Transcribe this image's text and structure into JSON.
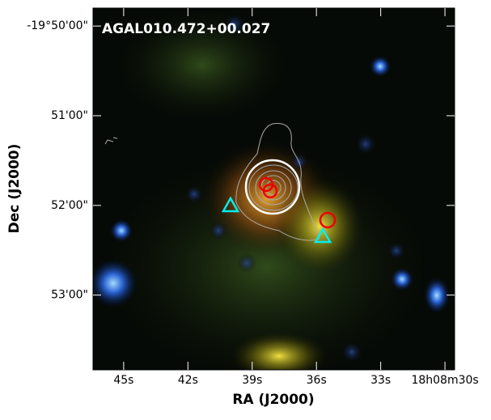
{
  "chart_data": {
    "type": "image",
    "annotation": "AGAL010.472+00.027",
    "xlabel": "RA (J2000)",
    "ylabel": "Dec (J2000)",
    "xlim": [
      46.43,
      29.55
    ],
    "xticks": [
      {
        "value": 45,
        "label": "45s"
      },
      {
        "value": 42,
        "label": "42s"
      },
      {
        "value": 39,
        "label": "39s"
      },
      {
        "value": 36,
        "label": "36s"
      },
      {
        "value": 33,
        "label": "33s"
      },
      {
        "value": 30,
        "label": "18h08m30s"
      }
    ],
    "ylim": [
      3230,
      2988
    ],
    "yticks": [
      {
        "value": 3000,
        "label": "-19°50'00\""
      },
      {
        "value": 3060,
        "label": "51'00\""
      },
      {
        "value": 3120,
        "label": "52'00\""
      },
      {
        "value": 3180,
        "label": "53'00\""
      }
    ]
  }
}
